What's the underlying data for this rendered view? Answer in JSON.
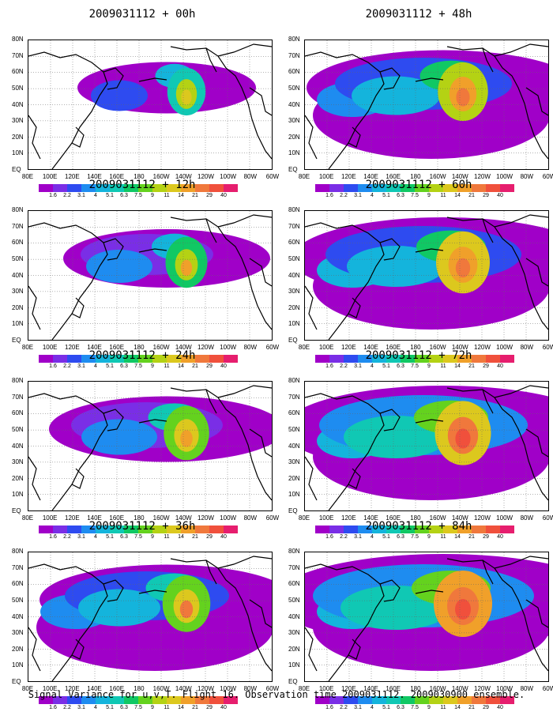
{
  "panels": [
    {
      "title": "2009031112 + 00h"
    },
    {
      "title": "2009031112 + 48h"
    },
    {
      "title": "2009031112 + 12h"
    },
    {
      "title": "2009031112 + 60h"
    },
    {
      "title": "2009031112 + 24h"
    },
    {
      "title": "2009031112 + 72h"
    },
    {
      "title": "2009031112 + 36h"
    },
    {
      "title": "2009031112 + 84h"
    }
  ],
  "lat_labels": [
    "80N",
    "70N",
    "60N",
    "50N",
    "40N",
    "30N",
    "20N",
    "10N",
    "EQ"
  ],
  "lon_labels": [
    "80E",
    "100E",
    "120E",
    "140E",
    "160E",
    "180",
    "160W",
    "140W",
    "120W",
    "100W",
    "80W",
    "60W"
  ],
  "colorbar": {
    "levels": [
      "1.6",
      "2.2",
      "3.1",
      "4",
      "5.1",
      "6.3",
      "7.5",
      "9",
      "11",
      "14",
      "21",
      "29",
      "40"
    ],
    "colors": [
      "#a000c8",
      "#7a2ee6",
      "#2e4bf0",
      "#1e8cf0",
      "#14b4dc",
      "#10c8b4",
      "#10c864",
      "#64d21e",
      "#b4d214",
      "#dcc81e",
      "#f0a02a",
      "#f0783c",
      "#f0503c",
      "#e61e6e"
    ]
  },
  "caption": "Signal Variance for u,v,T. Flight 16. Observation time 2009031112. 2009030900 ensemble."
}
